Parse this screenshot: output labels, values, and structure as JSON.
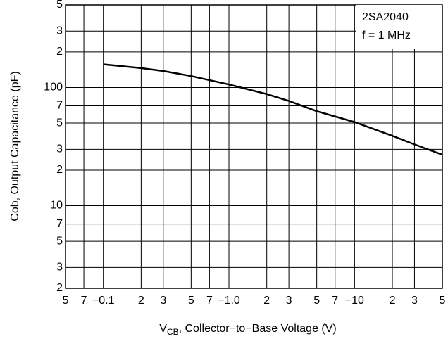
{
  "chart_data": {
    "type": "line",
    "x_label": {
      "main": "V",
      "sub": "CB",
      "rest": ", Collector−to−Base Voltage (V)"
    },
    "y_label": "Cob, Output Capacitance (pF)",
    "annotations": [
      "2SA2040",
      "f = 1 MHz"
    ],
    "x_log": true,
    "y_log": true,
    "grid": true,
    "xlim": [
      -0.05,
      -50
    ],
    "ylim": [
      2,
      500
    ],
    "xticks": [
      {
        "value": -0.05,
        "label": "5"
      },
      {
        "value": -0.07,
        "label": "7"
      },
      {
        "value": -0.1,
        "label": "−0.1"
      },
      {
        "value": -0.2,
        "label": "2"
      },
      {
        "value": -0.3,
        "label": "3"
      },
      {
        "value": -0.5,
        "label": "5"
      },
      {
        "value": -0.7,
        "label": "7"
      },
      {
        "value": -1,
        "label": "−1.0"
      },
      {
        "value": -2,
        "label": "2"
      },
      {
        "value": -3,
        "label": "3"
      },
      {
        "value": -5,
        "label": "5"
      },
      {
        "value": -7,
        "label": "7"
      },
      {
        "value": -10,
        "label": "−10"
      },
      {
        "value": -20,
        "label": "2"
      },
      {
        "value": -30,
        "label": "3"
      },
      {
        "value": -50,
        "label": "5"
      }
    ],
    "yticks": [
      2,
      3,
      5,
      7,
      10,
      {
        "value": 20,
        "label": "2"
      },
      {
        "value": 30,
        "label": "3"
      },
      {
        "value": 50,
        "label": "5"
      },
      {
        "value": 70,
        "label": "7"
      },
      100,
      {
        "value": 200,
        "label": "2"
      },
      {
        "value": 300,
        "label": "3"
      },
      {
        "value": 500,
        "label": "5"
      }
    ],
    "x": [
      -0.1,
      -0.2,
      -0.3,
      -0.5,
      -1,
      -2,
      -3,
      -5,
      -10,
      -20,
      -30,
      -50
    ],
    "series": [
      {
        "color": "#000000",
        "values": [
          157,
          146,
          138,
          125,
          106,
          88,
          77,
          63,
          51,
          39,
          33,
          27
        ]
      }
    ]
  }
}
